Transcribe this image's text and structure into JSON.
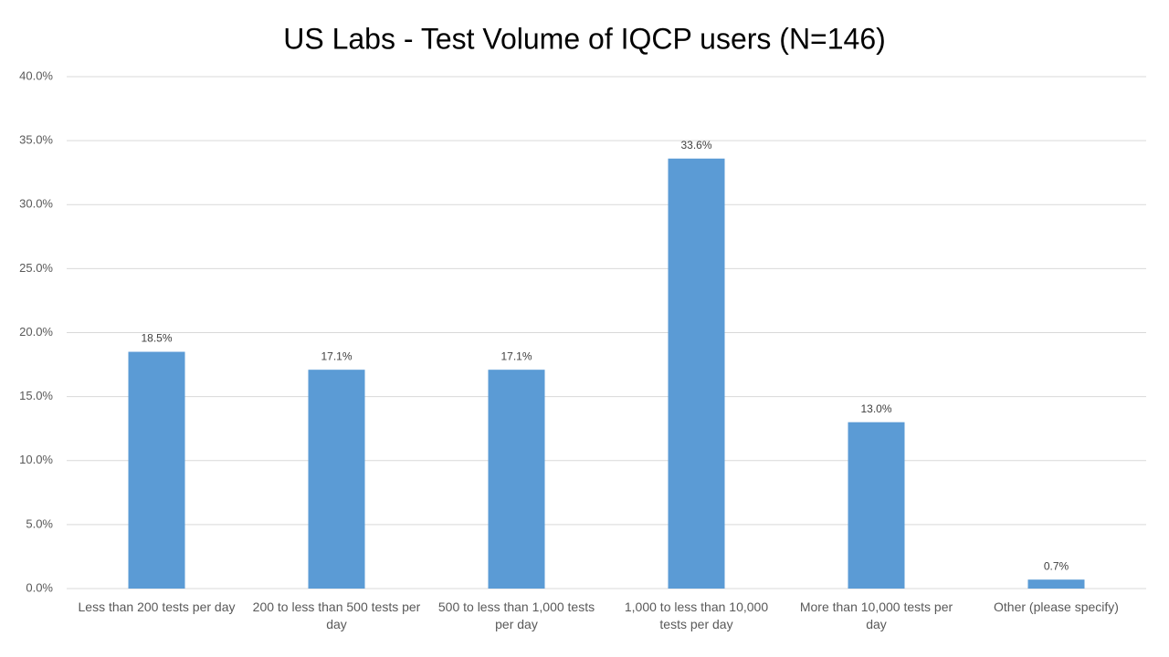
{
  "chart_data": {
    "type": "bar",
    "title": "US Labs - Test Volume of IQCP users (N=146)",
    "categories": [
      "Less than 200 tests per day",
      "200 to less than 500 tests per day",
      "500 to less than 1,000 tests per day",
      "1,000 to less than 10,000 tests per day",
      "More than 10,000 tests per day",
      "Other (please specify)"
    ],
    "values": [
      18.5,
      17.1,
      17.1,
      33.6,
      13.0,
      0.7
    ],
    "value_labels": [
      "18.5%",
      "17.1%",
      "17.1%",
      "33.6%",
      "13.0%",
      "0.7%"
    ],
    "color": "#5b9bd5",
    "ylim": [
      0,
      40
    ],
    "yticks": [
      {
        "value": 0,
        "label": "0.0%"
      },
      {
        "value": 5,
        "label": "5.0%"
      },
      {
        "value": 10,
        "label": "10.0%"
      },
      {
        "value": 15,
        "label": "15.0%"
      },
      {
        "value": 20,
        "label": "20.0%"
      },
      {
        "value": 25,
        "label": "25.0%"
      },
      {
        "value": 30,
        "label": "30.0%"
      },
      {
        "value": 35,
        "label": "35.0%"
      },
      {
        "value": 40,
        "label": "40.0%"
      }
    ],
    "grid": true
  }
}
